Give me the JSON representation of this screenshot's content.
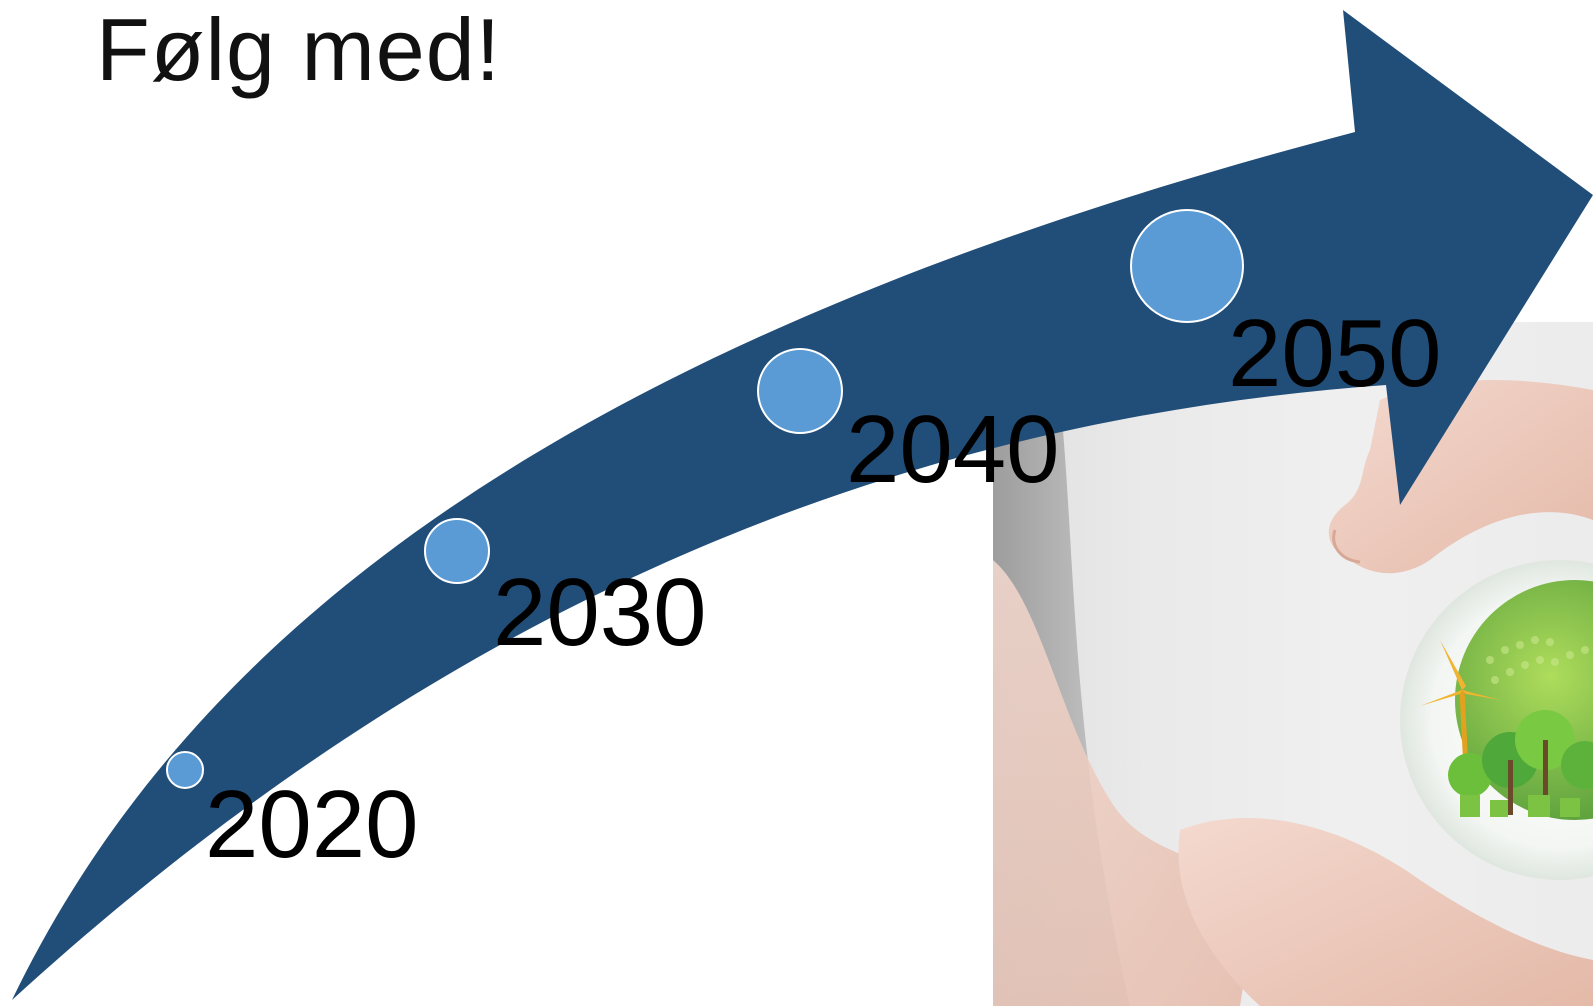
{
  "slide": {
    "title": "Følg med!"
  },
  "timeline": {
    "milestones": [
      {
        "year": "2020"
      },
      {
        "year": "2030"
      },
      {
        "year": "2040"
      },
      {
        "year": "2050"
      }
    ],
    "arrow_color": "#214E79",
    "marker_color": "#5B9BD5",
    "marker_outline": "#FFFFFF"
  },
  "photo": {
    "description_icon": "hands-holding-green-globe-icon"
  }
}
